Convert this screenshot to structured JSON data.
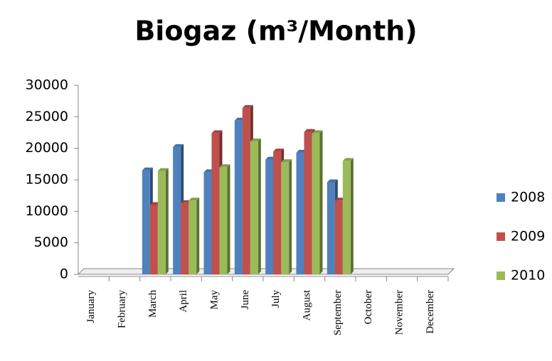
{
  "chart_data": {
    "type": "bar",
    "title": "Biogaz (m³/Month)",
    "categories": [
      "January",
      "February",
      "March",
      "April",
      "May",
      "June",
      "July",
      "August",
      "September",
      "October",
      "November",
      "December"
    ],
    "series": [
      {
        "name": "2008",
        "color": "#4f81bd",
        "values": [
          null,
          null,
          16500,
          20200,
          16200,
          24400,
          18200,
          19300,
          14600,
          null,
          null,
          null
        ]
      },
      {
        "name": "2009",
        "color": "#c0504d",
        "values": [
          null,
          null,
          11000,
          11300,
          22400,
          26400,
          19500,
          22600,
          11700,
          null,
          null,
          null
        ]
      },
      {
        "name": "2010",
        "color": "#9bbb59",
        "values": [
          null,
          null,
          16400,
          11700,
          17000,
          21100,
          17800,
          22400,
          18000,
          null,
          null,
          null
        ]
      }
    ],
    "ylim": [
      0,
      30000
    ],
    "yticks": [
      0,
      5000,
      10000,
      15000,
      20000,
      25000,
      30000
    ],
    "grid": false,
    "legend": "right"
  }
}
